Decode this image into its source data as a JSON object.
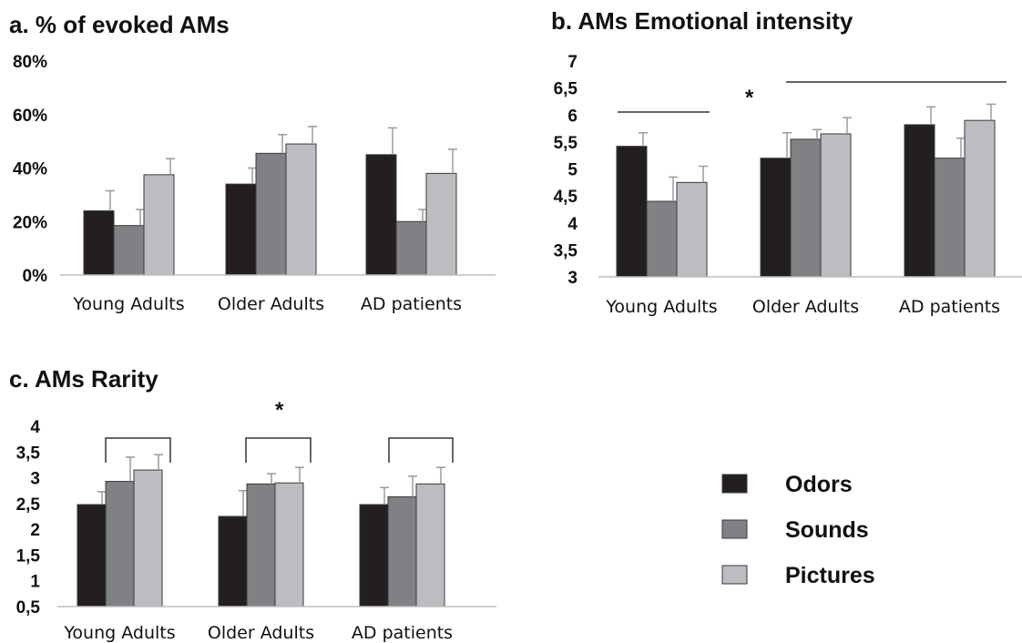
{
  "chart_data": [
    {
      "type": "bar",
      "title": "a. % of evoked AMs",
      "categories": [
        "Young Adults",
        "Older Adults",
        "AD patients"
      ],
      "yticks": [
        "0%",
        "20%",
        "40%",
        "60%",
        "80%"
      ],
      "ylim": [
        0,
        80
      ],
      "series": [
        {
          "name": "Odors",
          "values": [
            24,
            34,
            45
          ],
          "errors": [
            7.5,
            6,
            10
          ]
        },
        {
          "name": "Sounds",
          "values": [
            18.5,
            45.5,
            20
          ],
          "errors": [
            6,
            7,
            4.5
          ]
        },
        {
          "name": "Pictures",
          "values": [
            37.5,
            49,
            38
          ],
          "errors": [
            6,
            6.5,
            9
          ]
        }
      ],
      "annotations": [],
      "grid": false
    },
    {
      "type": "bar",
      "title": "b. AMs Emotional intensity",
      "categories": [
        "Young Adults",
        "Older Adults",
        "AD patients"
      ],
      "yticks": [
        "3",
        "3,5",
        "4",
        "4,5",
        "5",
        "5,5",
        "6",
        "6,5",
        "7"
      ],
      "ylim": [
        3,
        7
      ],
      "series": [
        {
          "name": "Odors",
          "values": [
            5.42,
            5.2,
            5.82
          ],
          "errors": [
            0.25,
            0.47,
            0.33
          ]
        },
        {
          "name": "Sounds",
          "values": [
            4.4,
            5.55,
            5.2
          ],
          "errors": [
            0.45,
            0.18,
            0.37
          ]
        },
        {
          "name": "Pictures",
          "values": [
            4.75,
            5.65,
            5.9
          ],
          "errors": [
            0.3,
            0.3,
            0.3
          ]
        }
      ],
      "annotations": [
        {
          "text": "*"
        }
      ],
      "grid": false
    },
    {
      "type": "bar",
      "title": "c. AMs Rarity",
      "categories": [
        "Young Adults",
        "Older Adults",
        "AD patients"
      ],
      "yticks": [
        "0,5",
        "1",
        "1,5",
        "2",
        "2,5",
        "3",
        "3,5",
        "4"
      ],
      "ylim": [
        0.5,
        4
      ],
      "series": [
        {
          "name": "Odors",
          "values": [
            2.48,
            2.25,
            2.48
          ],
          "errors": [
            0.25,
            0.5,
            0.33
          ]
        },
        {
          "name": "Sounds",
          "values": [
            2.93,
            2.88,
            2.63
          ],
          "errors": [
            0.47,
            0.2,
            0.4
          ]
        },
        {
          "name": "Pictures",
          "values": [
            3.15,
            2.9,
            2.88
          ],
          "errors": [
            0.3,
            0.3,
            0.32
          ]
        }
      ],
      "annotations": [
        {
          "text": "*"
        }
      ],
      "grid": false
    }
  ],
  "legend": {
    "items": [
      {
        "label": "Odors",
        "color": "#231f20"
      },
      {
        "label": "Sounds",
        "color": "#808184"
      },
      {
        "label": "Pictures",
        "color": "#bcbdc0"
      }
    ]
  },
  "colors": {
    "odors": "#231f20",
    "sounds": "#808184",
    "pictures": "#bcbdc0",
    "error_bar": "#9a9a9a"
  }
}
